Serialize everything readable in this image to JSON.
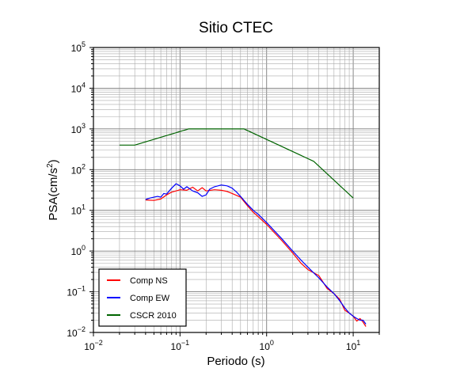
{
  "chart_data": {
    "type": "line",
    "title": "Sitio CTEC",
    "xlabel": "Periodo (s)",
    "ylabel": {
      "base": "PSA(cm/s",
      "sup": "2",
      "tail": ")"
    },
    "x_scale": "log",
    "y_scale": "log",
    "xlim": [
      0.01,
      20
    ],
    "ylim": [
      0.01,
      100000
    ],
    "grid": true,
    "legend_position": "bottom-left",
    "x_ticks": [
      {
        "value": 0.01,
        "base": "10",
        "exp": "−2"
      },
      {
        "value": 0.1,
        "base": "10",
        "exp": "−1"
      },
      {
        "value": 1,
        "base": "10",
        "exp": "0"
      },
      {
        "value": 10,
        "base": "10",
        "exp": "1"
      }
    ],
    "y_ticks": [
      {
        "value": 0.01,
        "base": "10",
        "exp": "−2"
      },
      {
        "value": 0.1,
        "base": "10",
        "exp": "−1"
      },
      {
        "value": 1,
        "base": "10",
        "exp": "0"
      },
      {
        "value": 10,
        "base": "10",
        "exp": "1"
      },
      {
        "value": 100,
        "base": "10",
        "exp": "2"
      },
      {
        "value": 1000,
        "base": "10",
        "exp": "3"
      },
      {
        "value": 10000,
        "base": "10",
        "exp": "4"
      },
      {
        "value": 100000,
        "base": "10",
        "exp": "5"
      }
    ],
    "series": [
      {
        "name": "Comp NS",
        "color": "#ff0000",
        "points": [
          [
            0.04,
            18
          ],
          [
            0.05,
            17.5
          ],
          [
            0.06,
            19
          ],
          [
            0.07,
            24
          ],
          [
            0.08,
            28
          ],
          [
            0.09,
            30
          ],
          [
            0.1,
            32
          ],
          [
            0.12,
            31
          ],
          [
            0.14,
            37
          ],
          [
            0.16,
            30
          ],
          [
            0.18,
            36
          ],
          [
            0.2,
            30
          ],
          [
            0.25,
            32
          ],
          [
            0.3,
            31
          ],
          [
            0.35,
            29
          ],
          [
            0.4,
            26
          ],
          [
            0.5,
            21
          ],
          [
            0.6,
            13
          ],
          [
            0.7,
            9
          ],
          [
            0.8,
            7
          ],
          [
            1.0,
            4.5
          ],
          [
            1.5,
            1.8
          ],
          [
            2.0,
            0.9
          ],
          [
            2.5,
            0.5
          ],
          [
            3.0,
            0.35
          ],
          [
            4.0,
            0.25
          ],
          [
            5.0,
            0.12
          ],
          [
            6.0,
            0.09
          ],
          [
            7.0,
            0.065
          ],
          [
            8.0,
            0.035
          ],
          [
            9.0,
            0.03
          ],
          [
            10.0,
            0.025
          ],
          [
            11.0,
            0.019
          ],
          [
            12.0,
            0.022
          ],
          [
            13.0,
            0.018
          ],
          [
            14.0,
            0.014
          ]
        ]
      },
      {
        "name": "Comp EW",
        "color": "#0000ff",
        "points": [
          [
            0.04,
            18.5
          ],
          [
            0.045,
            20
          ],
          [
            0.05,
            21
          ],
          [
            0.055,
            22
          ],
          [
            0.06,
            21
          ],
          [
            0.065,
            26
          ],
          [
            0.07,
            25
          ],
          [
            0.08,
            35
          ],
          [
            0.09,
            45
          ],
          [
            0.1,
            40
          ],
          [
            0.11,
            33
          ],
          [
            0.12,
            38
          ],
          [
            0.14,
            30
          ],
          [
            0.16,
            27
          ],
          [
            0.18,
            22
          ],
          [
            0.2,
            24
          ],
          [
            0.22,
            33
          ],
          [
            0.25,
            38
          ],
          [
            0.3,
            42
          ],
          [
            0.35,
            40
          ],
          [
            0.4,
            35
          ],
          [
            0.45,
            28
          ],
          [
            0.5,
            22
          ],
          [
            0.6,
            14
          ],
          [
            0.7,
            10
          ],
          [
            0.8,
            8
          ],
          [
            1.0,
            5
          ],
          [
            1.5,
            2
          ],
          [
            2.0,
            1.0
          ],
          [
            2.5,
            0.6
          ],
          [
            3.0,
            0.4
          ],
          [
            4.0,
            0.22
          ],
          [
            5.0,
            0.13
          ],
          [
            6.0,
            0.09
          ],
          [
            7.0,
            0.06
          ],
          [
            8.0,
            0.04
          ],
          [
            9.0,
            0.03
          ],
          [
            10.0,
            0.025
          ],
          [
            11.0,
            0.022
          ],
          [
            12.0,
            0.02
          ],
          [
            13.0,
            0.02
          ],
          [
            14.0,
            0.016
          ]
        ]
      },
      {
        "name": "CSCR 2010",
        "color": "#006400",
        "points": [
          [
            0.02,
            400
          ],
          [
            0.03,
            400
          ],
          [
            0.125,
            1000
          ],
          [
            0.55,
            1000
          ],
          [
            3.5,
            160
          ],
          [
            10,
            20
          ]
        ]
      }
    ]
  }
}
